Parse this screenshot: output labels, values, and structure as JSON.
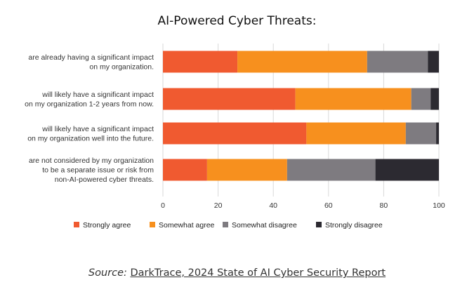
{
  "chart_data": {
    "type": "bar",
    "orientation": "horizontal",
    "stacked": true,
    "title": "AI-Powered Cyber Threats:",
    "categories": [
      [
        "are already having a significant impact",
        "on my organization."
      ],
      [
        "will likely have a significant impact",
        "on my organization 1-2 years from now."
      ],
      [
        "will likely have a significant impact",
        "on my organization well into the future."
      ],
      [
        "are not considered by my organization",
        "to be a separate issue or risk from",
        "non-AI-powered cyber threats."
      ]
    ],
    "series": [
      {
        "name": "Strongly agree",
        "color": "#f05a30",
        "values": [
          27,
          48,
          52,
          16
        ]
      },
      {
        "name": "Somewhat agree",
        "color": "#f7901e",
        "values": [
          47,
          42,
          36,
          29
        ]
      },
      {
        "name": "Somewhat disagree",
        "color": "#7e7b80",
        "values": [
          22,
          7,
          11,
          32
        ]
      },
      {
        "name": "Strongly disagree",
        "color": "#2c2a31",
        "values": [
          4,
          3,
          1,
          23
        ]
      }
    ],
    "xlim": [
      0,
      100
    ],
    "xticks": [
      0,
      20,
      40,
      60,
      80,
      100
    ],
    "xlabel": "",
    "ylabel": "",
    "legend_position": "bottom"
  },
  "source": {
    "prefix": "Source:",
    "link_text": "DarkTrace, 2024 State of AI Cyber Security Report"
  }
}
